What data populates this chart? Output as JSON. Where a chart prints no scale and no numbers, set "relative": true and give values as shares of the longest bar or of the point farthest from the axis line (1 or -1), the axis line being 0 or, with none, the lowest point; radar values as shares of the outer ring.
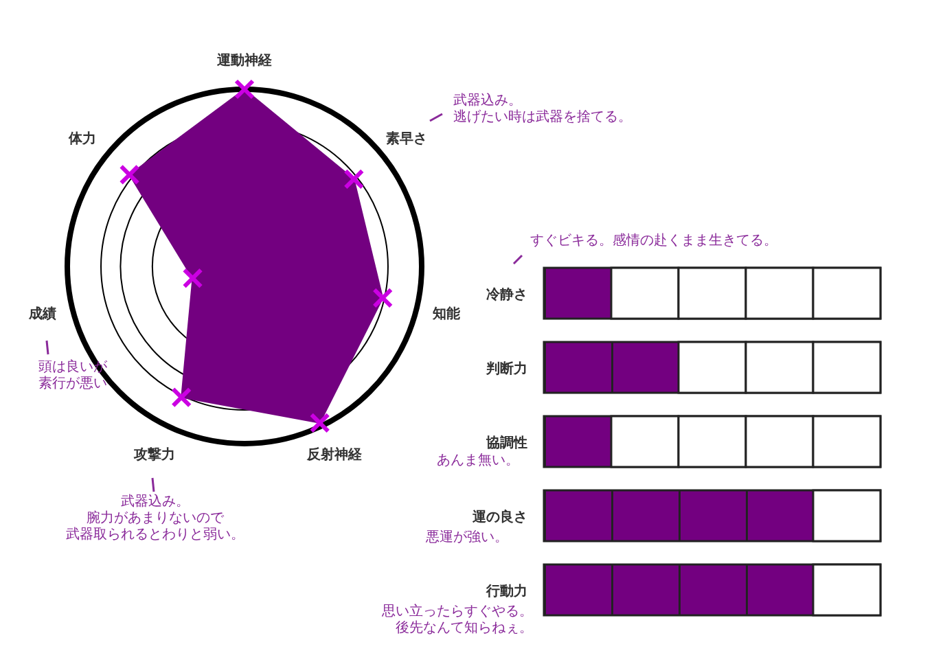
{
  "chart_data": [
    {
      "type": "radar",
      "relative": true,
      "categories": [
        "運動神経",
        "素早さ",
        "知能",
        "反射神経",
        "攻撃力",
        "成績",
        "体力"
      ],
      "series": [
        {
          "color": "#730080",
          "values": [
            1.0,
            0.79,
            0.8,
            0.98,
            0.82,
            0.3,
            0.83
          ]
        }
      ],
      "marker": "cross",
      "grid": true,
      "annotations": [
        "武器込み。逃げたい時は武器を捨てる。",
        "頭は良いが素行が悪い",
        "武器込み。腕力があまりないので武器取られるとわりと弱い。"
      ]
    },
    {
      "type": "bar",
      "orientation": "horizontal",
      "relative": true,
      "categories": [
        "冷静さ",
        "判断力",
        "協調性",
        "運の良さ",
        "行動力"
      ],
      "series": [
        {
          "color": "#730080",
          "values": [
            0.25,
            0.5,
            0.25,
            1,
            1
          ]
        }
      ],
      "annotations": [
        "すぐビキる。感情の赴くまま生きてる。",
        "あんま無い。",
        "悪運が強い。",
        "思い立ったらすぐやる。後先なんて知らねぇ。"
      ]
    }
  ]
}
